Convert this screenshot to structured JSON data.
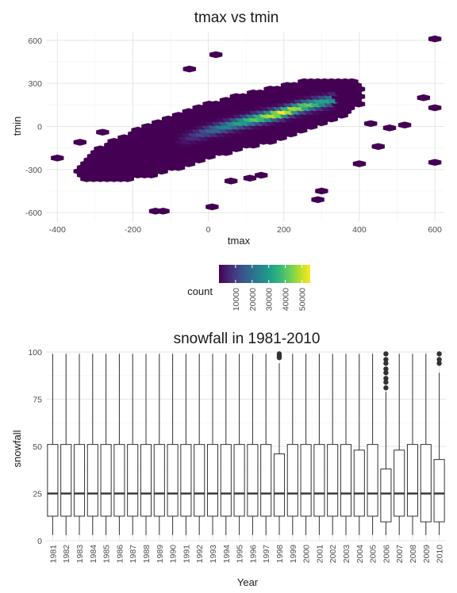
{
  "colors": {
    "viridis": [
      "#440154",
      "#482878",
      "#3e4a89",
      "#31688e",
      "#26828e",
      "#1f9e89",
      "#35b779",
      "#6ece58",
      "#b5de2b",
      "#fde725"
    ],
    "grid": "#e5e5e5",
    "box_line": "#333333"
  },
  "chart_data": [
    {
      "type": "hexbin",
      "title": "tmax vs tmin",
      "xlabel": "tmax",
      "ylabel": "tmin",
      "xlim": [
        -430,
        625
      ],
      "ylim": [
        -660,
        660
      ],
      "x_ticks": [
        -400,
        -200,
        0,
        200,
        400,
        600
      ],
      "y_ticks": [
        -600,
        -300,
        0,
        300,
        600
      ],
      "x_tick_labels": [
        "-400",
        "-200",
        "0",
        "200",
        "400",
        "600"
      ],
      "y_tick_labels": [
        "-600",
        "-300",
        "0",
        "300",
        "600"
      ],
      "grid": true,
      "legend": {
        "title": "count",
        "position": "bottom",
        "range": [
          0,
          55000
        ],
        "ticks": [
          10000,
          20000,
          30000,
          40000,
          50000
        ],
        "tick_labels": [
          "10000",
          "20000",
          "30000",
          "40000",
          "50000"
        ]
      },
      "density_ridge": {
        "x": [
          -200,
          -100,
          0,
          100,
          200,
          250,
          300
        ],
        "y": [
          -200,
          -120,
          -30,
          40,
          100,
          140,
          170
        ]
      },
      "outlier_bins": [
        {
          "x": 600,
          "y": 610
        },
        {
          "x": 570,
          "y": 200
        },
        {
          "x": 600,
          "y": 130
        },
        {
          "x": 600,
          "y": -250
        },
        {
          "x": 430,
          "y": 20
        },
        {
          "x": 480,
          "y": -10
        },
        {
          "x": 520,
          "y": 10
        },
        {
          "x": 10,
          "y": -560
        },
        {
          "x": -120,
          "y": -590
        },
        {
          "x": -140,
          "y": -590
        },
        {
          "x": 290,
          "y": -510
        },
        {
          "x": 300,
          "y": -450
        },
        {
          "x": 20,
          "y": 500
        },
        {
          "x": -50,
          "y": 400
        },
        {
          "x": -400,
          "y": -220
        },
        {
          "x": -340,
          "y": -110
        },
        {
          "x": -280,
          "y": -40
        },
        {
          "x": 450,
          "y": -140
        },
        {
          "x": 400,
          "y": -260
        },
        {
          "x": 110,
          "y": -360
        },
        {
          "x": 140,
          "y": -340
        },
        {
          "x": 60,
          "y": -380
        }
      ]
    },
    {
      "type": "box",
      "title": "snowfall in 1981-2010",
      "xlabel": "Year",
      "ylabel": "snowfall",
      "ylim": [
        0,
        100
      ],
      "y_ticks": [
        0,
        25,
        50,
        75,
        100
      ],
      "y_tick_labels": [
        "0",
        "25",
        "50",
        "75",
        "100"
      ],
      "grid": true,
      "categories": [
        "1981",
        "1982",
        "1983",
        "1984",
        "1985",
        "1986",
        "1987",
        "1988",
        "1989",
        "1990",
        "1991",
        "1992",
        "1993",
        "1994",
        "1995",
        "1996",
        "1997",
        "1998",
        "1999",
        "2000",
        "2001",
        "2002",
        "2003",
        "2004",
        "2005",
        "2006",
        "2007",
        "2008",
        "2009",
        "2010"
      ],
      "boxes": [
        {
          "min": 3,
          "q1": 13,
          "median": 25,
          "q3": 51,
          "max": 99,
          "outliers": []
        },
        {
          "min": 3,
          "q1": 13,
          "median": 25,
          "q3": 51,
          "max": 99,
          "outliers": []
        },
        {
          "min": 3,
          "q1": 13,
          "median": 25,
          "q3": 51,
          "max": 99,
          "outliers": []
        },
        {
          "min": 3,
          "q1": 13,
          "median": 25,
          "q3": 51,
          "max": 99,
          "outliers": []
        },
        {
          "min": 3,
          "q1": 13,
          "median": 25,
          "q3": 51,
          "max": 99,
          "outliers": []
        },
        {
          "min": 3,
          "q1": 13,
          "median": 25,
          "q3": 51,
          "max": 99,
          "outliers": []
        },
        {
          "min": 3,
          "q1": 13,
          "median": 25,
          "q3": 51,
          "max": 99,
          "outliers": []
        },
        {
          "min": 3,
          "q1": 13,
          "median": 25,
          "q3": 51,
          "max": 99,
          "outliers": []
        },
        {
          "min": 3,
          "q1": 13,
          "median": 25,
          "q3": 51,
          "max": 99,
          "outliers": []
        },
        {
          "min": 3,
          "q1": 13,
          "median": 25,
          "q3": 51,
          "max": 99,
          "outliers": []
        },
        {
          "min": 3,
          "q1": 13,
          "median": 25,
          "q3": 51,
          "max": 99,
          "outliers": []
        },
        {
          "min": 3,
          "q1": 13,
          "median": 25,
          "q3": 51,
          "max": 99,
          "outliers": []
        },
        {
          "min": 3,
          "q1": 13,
          "median": 25,
          "q3": 51,
          "max": 99,
          "outliers": []
        },
        {
          "min": 3,
          "q1": 13,
          "median": 25,
          "q3": 51,
          "max": 99,
          "outliers": []
        },
        {
          "min": 3,
          "q1": 13,
          "median": 25,
          "q3": 51,
          "max": 99,
          "outliers": []
        },
        {
          "min": 3,
          "q1": 13,
          "median": 25,
          "q3": 51,
          "max": 99,
          "outliers": []
        },
        {
          "min": 3,
          "q1": 13,
          "median": 25,
          "q3": 51,
          "max": 99,
          "outliers": []
        },
        {
          "min": 3,
          "q1": 13,
          "median": 25,
          "q3": 46,
          "max": 94,
          "outliers": [
            97,
            98,
            99
          ]
        },
        {
          "min": 3,
          "q1": 13,
          "median": 25,
          "q3": 51,
          "max": 99,
          "outliers": []
        },
        {
          "min": 3,
          "q1": 13,
          "median": 25,
          "q3": 51,
          "max": 99,
          "outliers": []
        },
        {
          "min": 3,
          "q1": 13,
          "median": 25,
          "q3": 51,
          "max": 99,
          "outliers": []
        },
        {
          "min": 3,
          "q1": 13,
          "median": 25,
          "q3": 51,
          "max": 99,
          "outliers": []
        },
        {
          "min": 3,
          "q1": 13,
          "median": 25,
          "q3": 51,
          "max": 99,
          "outliers": []
        },
        {
          "min": 3,
          "q1": 13,
          "median": 25,
          "q3": 48,
          "max": 99,
          "outliers": []
        },
        {
          "min": 3,
          "q1": 13,
          "median": 25,
          "q3": 51,
          "max": 99,
          "outliers": []
        },
        {
          "min": 3,
          "q1": 10,
          "median": 25,
          "q3": 38,
          "max": 79,
          "outliers": [
            81,
            84,
            86,
            89,
            91,
            94,
            96,
            99
          ]
        },
        {
          "min": 3,
          "q1": 13,
          "median": 25,
          "q3": 48,
          "max": 99,
          "outliers": []
        },
        {
          "min": 3,
          "q1": 13,
          "median": 25,
          "q3": 51,
          "max": 99,
          "outliers": []
        },
        {
          "min": 3,
          "q1": 10,
          "median": 25,
          "q3": 51,
          "max": 99,
          "outliers": []
        },
        {
          "min": 3,
          "q1": 10,
          "median": 25,
          "q3": 43,
          "max": 89,
          "outliers": [
            94,
            96,
            99
          ]
        }
      ]
    }
  ]
}
